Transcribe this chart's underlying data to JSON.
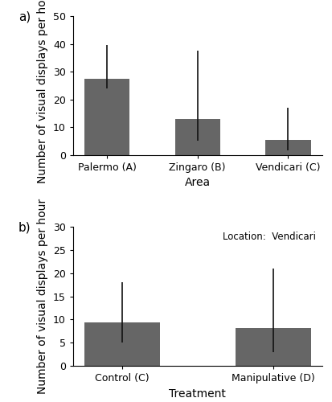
{
  "panel_a": {
    "categories": [
      "Palermo (A)",
      "Zingaro (B)",
      "Vendicari (C)"
    ],
    "values": [
      27.5,
      13.0,
      5.3
    ],
    "ci_upper": [
      39.5,
      37.5,
      17.0
    ],
    "ci_lower": [
      24.0,
      5.0,
      1.5
    ],
    "bar_color": "#666666",
    "ylabel": "Number of visual displays per hour",
    "xlabel": "Area",
    "ylim": [
      0,
      50
    ],
    "yticks": [
      0,
      10,
      20,
      30,
      40,
      50
    ],
    "label": "a)"
  },
  "panel_b": {
    "categories": [
      "Control (C)",
      "Manipulative (D)"
    ],
    "values": [
      9.3,
      8.2
    ],
    "ci_upper": [
      18.0,
      21.0
    ],
    "ci_lower": [
      5.0,
      3.0
    ],
    "bar_color": "#666666",
    "ylabel": "Number of visual displays per hour",
    "xlabel": "Treatment",
    "ylim": [
      0,
      30
    ],
    "yticks": [
      0,
      5,
      10,
      15,
      20,
      25,
      30
    ],
    "annotation": "Location:  Vendicari",
    "label": "b)"
  },
  "figure_bg": "#ffffff",
  "bar_width": 0.5,
  "capsize": 0,
  "error_color": "#111111",
  "error_lw": 1.2,
  "tick_labelsize": 9,
  "axis_labelsize": 10
}
